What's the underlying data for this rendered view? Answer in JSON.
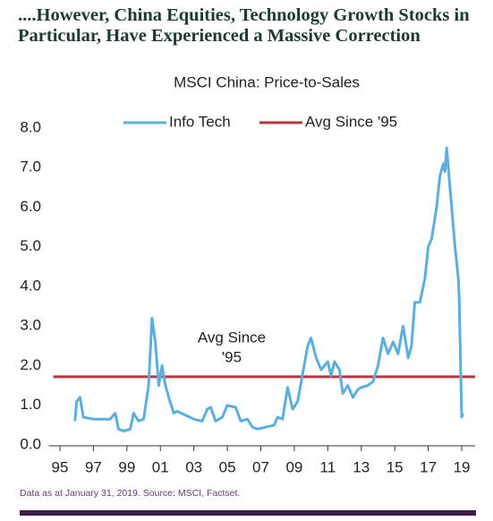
{
  "chart_data": {
    "type": "line",
    "title": "....However, China Equities, Technology Growth Stocks in Particular, Have Experienced a Massive Correction",
    "subtitle": "MSCI China: Price-to-Sales",
    "footnote": "Data as at January 31, 2019. Source: MSCI, Factset.",
    "annotation": [
      "Avg Since",
      "'95"
    ],
    "x": [
      1995.9,
      1996.0,
      1996.2,
      1996.4,
      1997.0,
      1997.5,
      1998.0,
      1998.3,
      1998.5,
      1998.8,
      1999.2,
      1999.4,
      1999.7,
      2000.0,
      2000.3,
      2000.5,
      2000.7,
      2000.9,
      2001.1,
      2001.3,
      2001.5,
      2001.8,
      2002.0,
      2002.5,
      2003.0,
      2003.5,
      2003.8,
      2004.0,
      2004.3,
      2004.7,
      2005.0,
      2005.5,
      2005.8,
      2006.2,
      2006.5,
      2006.8,
      2007.3,
      2007.8,
      2008.0,
      2008.3,
      2008.6,
      2008.9,
      2009.2,
      2009.5,
      2009.8,
      2010.0,
      2010.3,
      2010.6,
      2011.0,
      2011.2,
      2011.4,
      2011.7,
      2011.9,
      2012.2,
      2012.5,
      2012.8,
      2013.0,
      2013.4,
      2013.7,
      2014.0,
      2014.3,
      2014.6,
      2014.9,
      2015.2,
      2015.5,
      2015.8,
      2016.0,
      2016.2,
      2016.5,
      2016.8,
      2017.0,
      2017.2,
      2017.5,
      2017.7,
      2017.9,
      2018.0,
      2018.1,
      2018.3,
      2018.4,
      2018.6,
      2018.8,
      2018.85,
      2019.0,
      2019.08
    ],
    "series": [
      {
        "name": "Info Tech",
        "color": "#5aaee0",
        "values": [
          0.6,
          1.1,
          1.2,
          0.7,
          0.65,
          0.65,
          0.65,
          0.8,
          0.4,
          0.35,
          0.4,
          0.8,
          0.6,
          0.65,
          1.5,
          3.2,
          2.6,
          1.5,
          2.0,
          1.5,
          1.2,
          0.8,
          0.85,
          0.75,
          0.65,
          0.6,
          0.9,
          0.95,
          0.6,
          0.7,
          1.0,
          0.95,
          0.6,
          0.65,
          0.45,
          0.4,
          0.45,
          0.5,
          0.7,
          0.65,
          1.45,
          0.9,
          1.1,
          1.8,
          2.5,
          2.7,
          2.2,
          1.9,
          2.1,
          1.75,
          2.1,
          1.9,
          1.3,
          1.5,
          1.2,
          1.4,
          1.45,
          1.5,
          1.6,
          2.0,
          2.7,
          2.3,
          2.6,
          2.3,
          3.0,
          2.2,
          2.5,
          3.6,
          3.6,
          4.2,
          5.0,
          5.2,
          6.0,
          6.8,
          7.1,
          6.9,
          7.5,
          6.5,
          6.0,
          5.0,
          4.2,
          3.7,
          0.7,
          0.8
        ]
      }
    ],
    "reference_line": {
      "name": "Avg Since '95",
      "value": 1.72,
      "color": "#b5373a"
    },
    "xlim": [
      1994.6,
      2019.8
    ],
    "xticks": [
      {
        "value": 1995,
        "label": "95"
      },
      {
        "value": 1997,
        "label": "97"
      },
      {
        "value": 1999,
        "label": "99"
      },
      {
        "value": 2001,
        "label": "01"
      },
      {
        "value": 2003,
        "label": "03"
      },
      {
        "value": 2005,
        "label": "05"
      },
      {
        "value": 2007,
        "label": "07"
      },
      {
        "value": 2009,
        "label": "09"
      },
      {
        "value": 2011,
        "label": "11"
      },
      {
        "value": 2013,
        "label": "13"
      },
      {
        "value": 2015,
        "label": "15"
      },
      {
        "value": 2017,
        "label": "17"
      },
      {
        "value": 2019,
        "label": "19"
      }
    ],
    "ylim": [
      0,
      8
    ],
    "yticks": [
      {
        "value": 0,
        "label": "0.0"
      },
      {
        "value": 1,
        "label": "1.0"
      },
      {
        "value": 2,
        "label": "2.0"
      },
      {
        "value": 3,
        "label": "3.0"
      },
      {
        "value": 4,
        "label": "4.0"
      },
      {
        "value": 5,
        "label": "5.0"
      },
      {
        "value": 6,
        "label": "6.0"
      },
      {
        "value": 7,
        "label": "7.0"
      },
      {
        "value": 8,
        "label": "8.0"
      }
    ],
    "grid": false
  }
}
